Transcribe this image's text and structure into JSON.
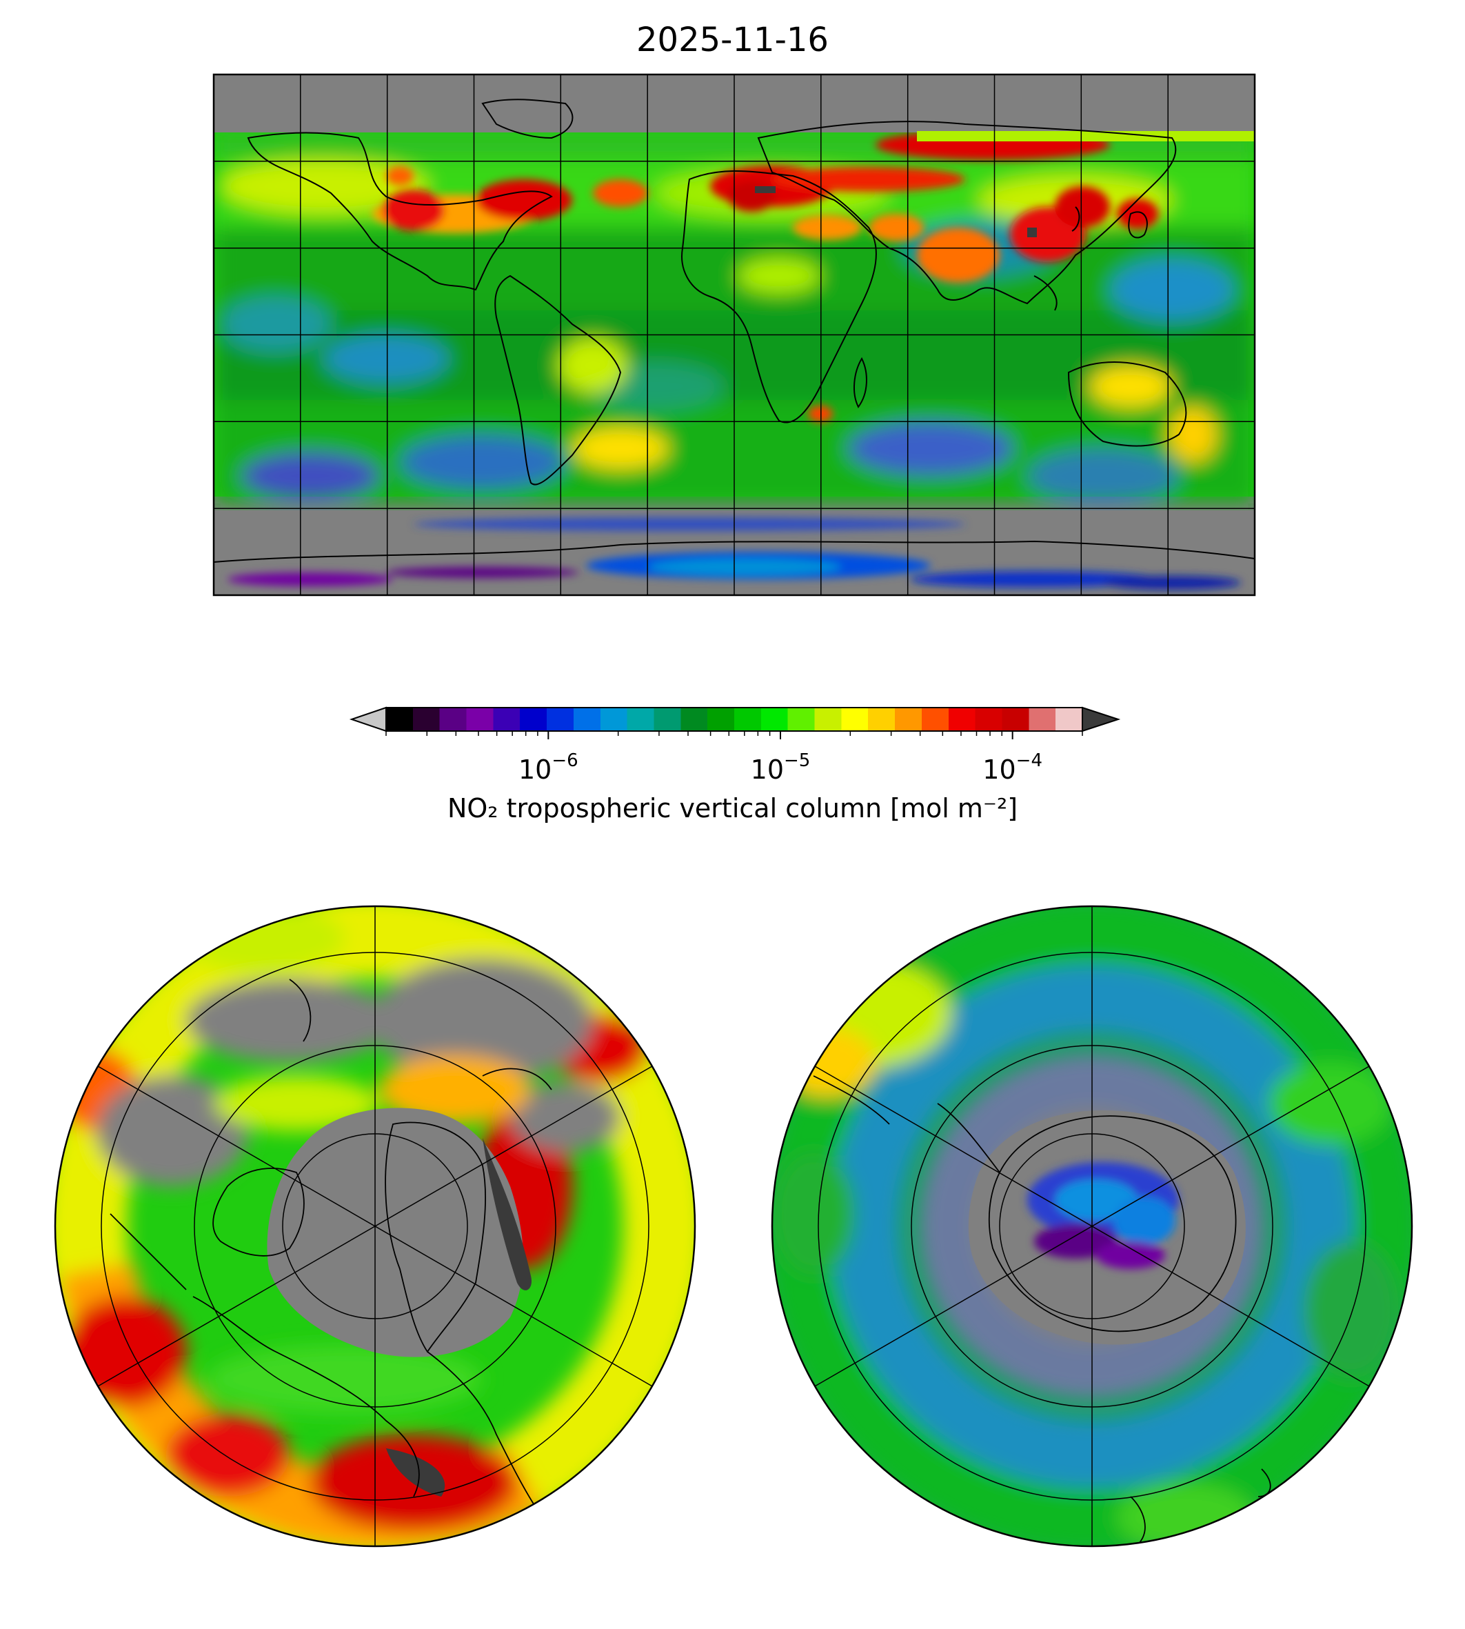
{
  "title": "2025-11-16",
  "colorbar": {
    "label": "NO₂ tropospheric vertical column [mol m⁻²]",
    "scale": "log",
    "range": [
      2e-07,
      0.0002
    ],
    "ticks": [
      {
        "value": 1e-06,
        "base": "10",
        "exp": "−6"
      },
      {
        "value": 1e-05,
        "base": "10",
        "exp": "−5"
      },
      {
        "value": 0.0001,
        "base": "10",
        "exp": "−4"
      }
    ],
    "extend": "both",
    "under_color": "#c8c8c8",
    "over_color": "#3a3a3a",
    "colors": [
      "#000000",
      "#2a0030",
      "#5a0085",
      "#7a00a8",
      "#3b00b5",
      "#0000cc",
      "#0030e0",
      "#0070e8",
      "#0098d8",
      "#00a8a8",
      "#009a70",
      "#008a20",
      "#00a000",
      "#00c800",
      "#00e800",
      "#60f000",
      "#c8f000",
      "#ffff00",
      "#ffd000",
      "#ff9800",
      "#ff5000",
      "#f00000",
      "#d80000",
      "#c80000",
      "#e07070",
      "#f0c8c8"
    ]
  },
  "maps": [
    {
      "name": "equirectangular",
      "projection": "PlateCarree",
      "missing_color": "#808080",
      "grid": true
    },
    {
      "name": "north-polar",
      "projection": "NorthPolarStereo",
      "missing_color": "#808080",
      "grid": true
    },
    {
      "name": "south-polar",
      "projection": "SouthPolarStereo",
      "missing_color": "#808080",
      "grid": true
    }
  ]
}
